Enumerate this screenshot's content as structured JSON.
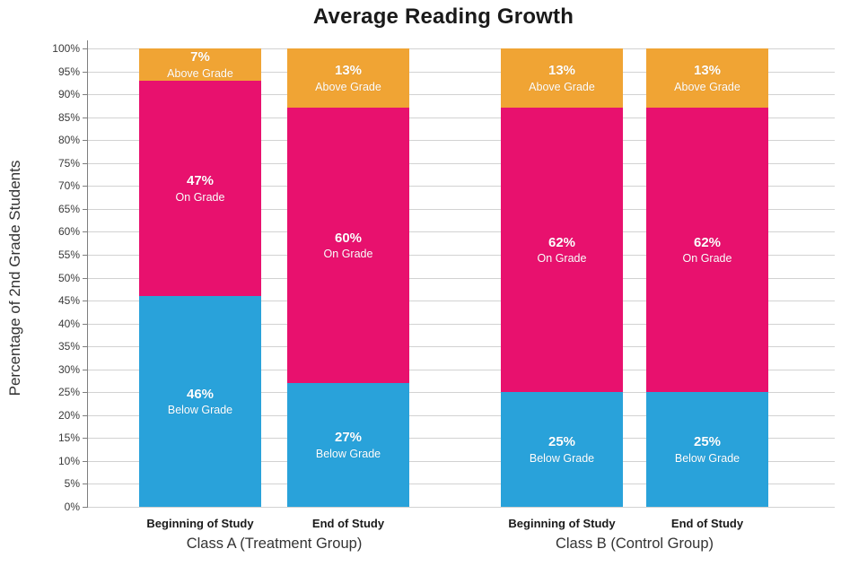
{
  "title": "Average Reading Growth",
  "y_axis": {
    "label": "Percentage of 2nd Grade Students",
    "min": 0,
    "max": 100,
    "step": 5,
    "suffix": "%"
  },
  "chart_data": {
    "type": "bar",
    "stacked": true,
    "title": "Average Reading Growth",
    "ylabel": "Percentage of 2nd Grade Students",
    "ylim": [
      0,
      100
    ],
    "y_tick_step": 5,
    "grid": true,
    "legend": "none (labels inside segments)",
    "categories": [
      "Beginning of Study",
      "End of Study",
      "Beginning of Study",
      "End of Study"
    ],
    "series": [
      {
        "name": "Below Grade",
        "color": "#29A2DA",
        "values": [
          46,
          27,
          25,
          25
        ]
      },
      {
        "name": "On Grade",
        "color": "#E8116E",
        "values": [
          47,
          60,
          62,
          62
        ]
      },
      {
        "name": "Above Grade",
        "color": "#F0A434",
        "values": [
          7,
          13,
          13,
          13
        ]
      }
    ],
    "groups": [
      {
        "label": "Class A (Treatment Group)",
        "bar_indexes": [
          0,
          1
        ]
      },
      {
        "label": "Class B (Control Group)",
        "bar_indexes": [
          2,
          3
        ]
      }
    ]
  },
  "colors": {
    "below_grade": "#29A2DA",
    "on_grade": "#E8116E",
    "above_grade": "#F0A434",
    "gridline": "#D2D2D2",
    "axis_line": "#7F7F7F",
    "title_text": "#1A1A1A",
    "axis_text": "#333333",
    "segment_text": "#FFFFFF"
  }
}
